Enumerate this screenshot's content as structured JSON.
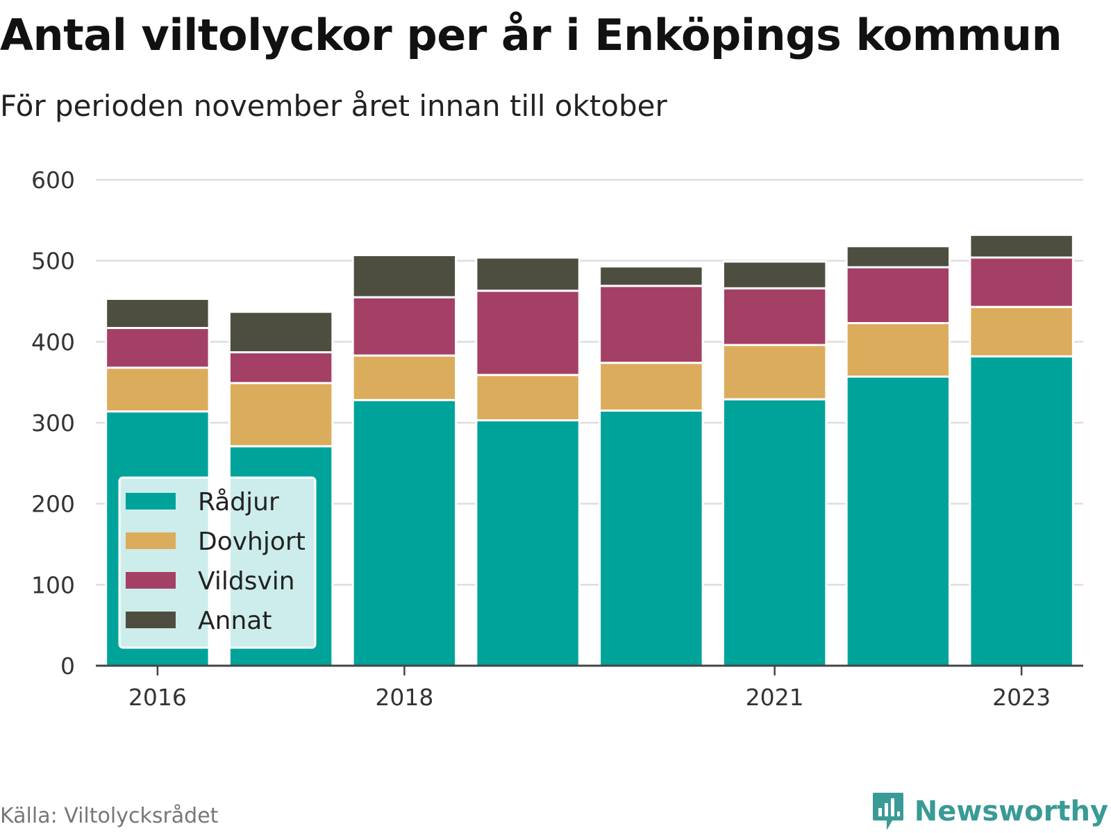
{
  "title": "Antal viltolyckor per år i Enköpings kommun",
  "subtitle": "För perioden november året innan till oktober",
  "source": "Källa: Viltolycksrådet",
  "brand": {
    "name": "Newsworthy",
    "icon": "newsworthy-logo-icon",
    "color": "#3a9a95"
  },
  "chart_data": {
    "type": "bar",
    "stacked": true,
    "categories": [
      "2016",
      "2017",
      "2018",
      "2019",
      "2020",
      "2021",
      "2022",
      "2023"
    ],
    "x_tick_labels": [
      "2016",
      "",
      "2018",
      "",
      "",
      "2021",
      "",
      "2023"
    ],
    "series": [
      {
        "name": "Rådjur",
        "color": "#00a39a",
        "values": [
          314,
          271,
          328,
          303,
          315,
          329,
          357,
          382
        ]
      },
      {
        "name": "Dovhjort",
        "color": "#dbac5b",
        "values": [
          54,
          78,
          55,
          56,
          59,
          67,
          66,
          61
        ]
      },
      {
        "name": "Vildsvin",
        "color": "#a44066",
        "values": [
          49,
          38,
          72,
          104,
          95,
          70,
          69,
          61
        ]
      },
      {
        "name": "Annat",
        "color": "#4d4e3f",
        "values": [
          36,
          50,
          52,
          41,
          24,
          33,
          26,
          28
        ]
      }
    ],
    "ylim": [
      0,
      600
    ],
    "yticks": [
      0,
      100,
      200,
      300,
      400,
      500,
      600
    ],
    "grid": true,
    "legend": "bottom-left"
  }
}
